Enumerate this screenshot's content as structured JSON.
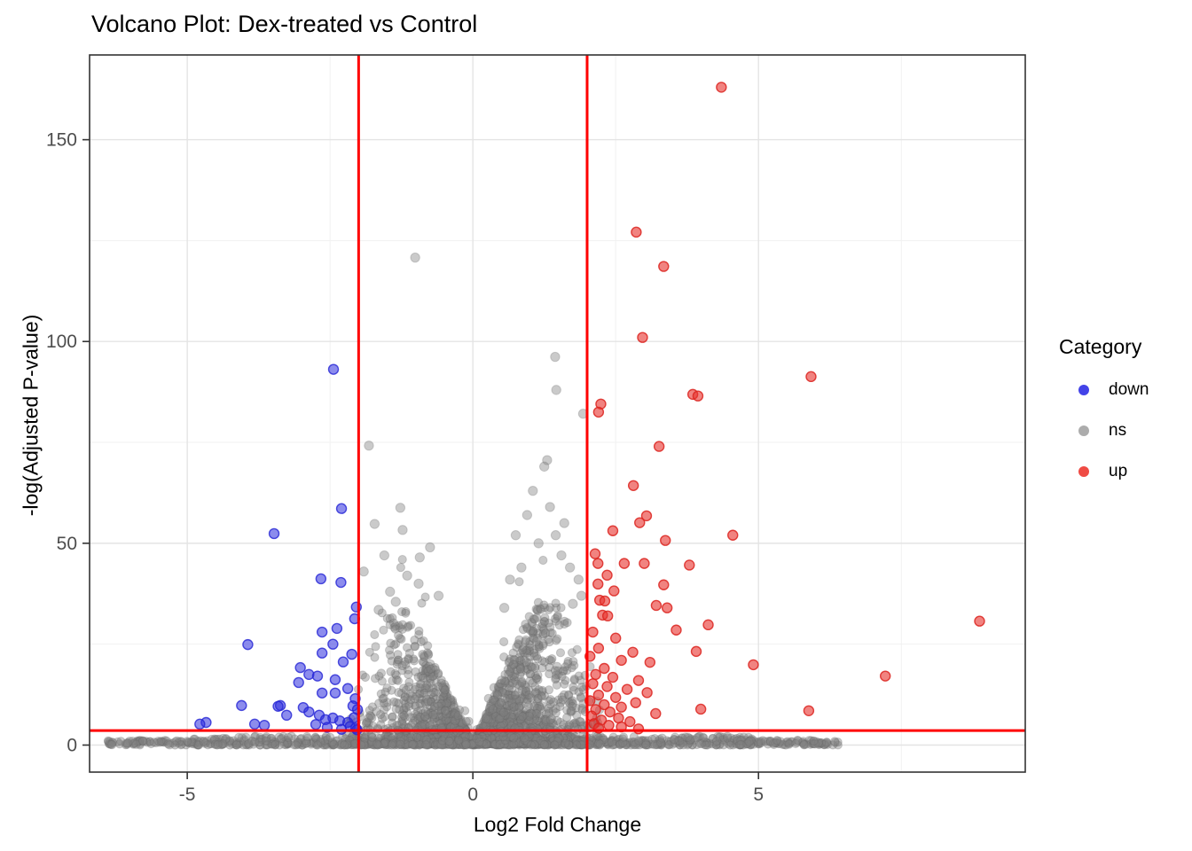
{
  "title": "Volcano Plot: Dex-treated vs Control",
  "legend": {
    "title": "Category",
    "items": [
      {
        "label": "down",
        "color": "#4343E8"
      },
      {
        "label": "ns",
        "color": "#ACACAC"
      },
      {
        "label": "up",
        "color": "#EF4B44"
      }
    ]
  },
  "chart_data": {
    "type": "scatter",
    "title": "Volcano Plot: Dex-treated vs Control",
    "xlabel": "Log2 Fold Change",
    "ylabel": "-log(Adjusted P-value)",
    "xlim": [
      -6.71,
      9.67
    ],
    "ylim": [
      -6.7,
      171
    ],
    "x_ticks": [
      -5,
      0,
      5
    ],
    "x_minor": [
      -2.5,
      2.5,
      7.5
    ],
    "y_ticks": [
      0,
      50,
      100,
      150
    ],
    "y_minor": [
      25,
      75,
      125
    ],
    "grid": true,
    "legend_position": "right",
    "thresholds": {
      "vlines": [
        -2,
        2
      ],
      "hline": 3.6,
      "color": "#FF0000",
      "width": 3
    },
    "style": {
      "panel_border": "#333333",
      "grid_major": "#E4E4E4",
      "grid_minor": "#F1F1F1",
      "tick_color": "#333333",
      "tick_label_color": "#4D4D4D",
      "down_fill": "#2E2EDF",
      "down_stroke": "#2424D4",
      "up_fill": "#E8312C",
      "up_stroke": "#DC2420",
      "ns_fill": "#808080",
      "ns_stroke": "#646464"
    },
    "series": [
      {
        "name": "down",
        "points": [
          [
            -2.44,
            93.1
          ],
          [
            -2.3,
            58.6
          ],
          [
            -3.48,
            52.4
          ],
          [
            -2.66,
            41.2
          ],
          [
            -2.31,
            40.3
          ],
          [
            -2.04,
            34.2
          ],
          [
            -2.07,
            31.3
          ],
          [
            -2.38,
            28.9
          ],
          [
            -2.64,
            28.0
          ],
          [
            -2.45,
            25.0
          ],
          [
            -3.94,
            24.9
          ],
          [
            -2.64,
            22.8
          ],
          [
            -2.12,
            22.5
          ],
          [
            -2.27,
            20.6
          ],
          [
            -3.02,
            19.2
          ],
          [
            -2.87,
            17.5
          ],
          [
            -2.72,
            17.1
          ],
          [
            -2.41,
            16.2
          ],
          [
            -3.05,
            15.5
          ],
          [
            -2.19,
            14.0
          ],
          [
            -2.64,
            12.9
          ],
          [
            -2.41,
            12.9
          ],
          [
            -2.06,
            11.5
          ],
          [
            -4.05,
            9.8
          ],
          [
            -3.37,
            9.8
          ],
          [
            -2.1,
            9.7
          ],
          [
            -3.41,
            9.6
          ],
          [
            -2.97,
            9.3
          ],
          [
            -2.02,
            8.8
          ],
          [
            -2.87,
            8.2
          ],
          [
            -3.26,
            7.4
          ],
          [
            -2.69,
            7.4
          ],
          [
            -2.08,
            6.8
          ],
          [
            -2.45,
            6.7
          ],
          [
            -2.58,
            6.3
          ],
          [
            -2.33,
            6.0
          ],
          [
            -4.67,
            5.6
          ],
          [
            -2.19,
            5.6
          ],
          [
            -3.82,
            5.2
          ],
          [
            -4.78,
            5.2
          ],
          [
            -2.75,
            5.1
          ],
          [
            -3.65,
            4.9
          ],
          [
            -2.15,
            4.6
          ],
          [
            -2.55,
            4.4
          ],
          [
            -2.05,
            4.2
          ],
          [
            -2.3,
            3.9
          ],
          [
            -2.03,
            3.8
          ]
        ]
      },
      {
        "name": "up",
        "points": [
          [
            4.35,
            163.0
          ],
          [
            2.86,
            127.1
          ],
          [
            3.34,
            118.6
          ],
          [
            2.97,
            101.0
          ],
          [
            5.92,
            91.3
          ],
          [
            3.85,
            86.9
          ],
          [
            3.94,
            86.5
          ],
          [
            2.24,
            84.5
          ],
          [
            2.2,
            82.5
          ],
          [
            3.26,
            74.0
          ],
          [
            2.81,
            64.3
          ],
          [
            3.04,
            56.8
          ],
          [
            2.92,
            55.1
          ],
          [
            2.45,
            53.1
          ],
          [
            4.55,
            52.0
          ],
          [
            3.37,
            50.7
          ],
          [
            2.14,
            47.4
          ],
          [
            2.19,
            45.0
          ],
          [
            2.65,
            45.0
          ],
          [
            3.0,
            45.0
          ],
          [
            3.79,
            44.6
          ],
          [
            2.35,
            42.1
          ],
          [
            2.19,
            39.9
          ],
          [
            3.34,
            39.7
          ],
          [
            2.47,
            38.2
          ],
          [
            2.22,
            35.9
          ],
          [
            2.31,
            35.7
          ],
          [
            3.21,
            34.6
          ],
          [
            3.4,
            34.0
          ],
          [
            2.27,
            32.2
          ],
          [
            2.36,
            32.0
          ],
          [
            8.87,
            30.7
          ],
          [
            4.12,
            29.8
          ],
          [
            3.56,
            28.5
          ],
          [
            2.1,
            28.0
          ],
          [
            2.5,
            26.5
          ],
          [
            2.2,
            24.0
          ],
          [
            3.91,
            23.2
          ],
          [
            2.8,
            23.0
          ],
          [
            2.05,
            22.0
          ],
          [
            2.6,
            21.0
          ],
          [
            3.1,
            20.5
          ],
          [
            4.91,
            19.9
          ],
          [
            2.3,
            19.0
          ],
          [
            2.15,
            17.5
          ],
          [
            7.22,
            17.1
          ],
          [
            2.45,
            16.8
          ],
          [
            2.9,
            16.0
          ],
          [
            2.1,
            15.2
          ],
          [
            2.35,
            14.5
          ],
          [
            2.7,
            13.8
          ],
          [
            3.05,
            13.0
          ],
          [
            2.2,
            12.4
          ],
          [
            2.5,
            11.8
          ],
          [
            2.05,
            11.0
          ],
          [
            2.85,
            10.5
          ],
          [
            2.3,
            10.0
          ],
          [
            2.6,
            9.4
          ],
          [
            3.99,
            8.9
          ],
          [
            2.15,
            8.8
          ],
          [
            5.88,
            8.5
          ],
          [
            2.4,
            8.2
          ],
          [
            3.2,
            7.8
          ],
          [
            2.08,
            7.2
          ],
          [
            2.55,
            6.7
          ],
          [
            2.25,
            6.2
          ],
          [
            2.75,
            5.8
          ],
          [
            2.12,
            5.3
          ],
          [
            2.38,
            4.9
          ],
          [
            2.6,
            4.5
          ],
          [
            2.2,
            4.2
          ],
          [
            2.9,
            4.0
          ]
        ]
      },
      {
        "name": "ns",
        "points": [
          [
            -1.01,
            120.8
          ],
          [
            1.44,
            96.2
          ],
          [
            1.46,
            88.0
          ],
          [
            1.93,
            82.1
          ],
          [
            -1.82,
            74.2
          ],
          [
            1.3,
            70.6
          ],
          [
            1.25,
            69.0
          ],
          [
            1.05,
            63.0
          ],
          [
            -1.27,
            58.8
          ],
          [
            1.35,
            59.0
          ],
          [
            0.95,
            57.0
          ],
          [
            1.6,
            55.0
          ],
          [
            -1.72,
            54.8
          ],
          [
            -1.23,
            53.3
          ],
          [
            1.45,
            52.0
          ],
          [
            0.75,
            52.0
          ],
          [
            1.15,
            50.0
          ],
          [
            -0.75,
            49.0
          ],
          [
            -1.55,
            47.0
          ],
          [
            1.55,
            47.0
          ],
          [
            -0.93,
            46.5
          ],
          [
            0.85,
            44.0
          ],
          [
            1.7,
            44.0
          ],
          [
            -1.91,
            43.0
          ],
          [
            -1.15,
            42.0
          ],
          [
            0.65,
            41.0
          ],
          [
            1.85,
            41.0
          ],
          [
            -0.95,
            40.0
          ],
          [
            -1.45,
            38.0
          ],
          [
            1.9,
            37.0
          ],
          [
            -0.6,
            37.0
          ],
          [
            -1.35,
            35.5
          ],
          [
            1.75,
            35.0
          ],
          [
            0.55,
            34.0
          ],
          [
            -1.65,
            33.5
          ]
        ],
        "cloud": {
          "seed": 1234,
          "count": 2400,
          "x_sigma": 0.95,
          "x_skew": 0.12,
          "x_max": 2.25,
          "notch_ramp": 1.1,
          "peak": 33,
          "fade_start": 1.6,
          "fade_span": 0.7,
          "y_pow": 2.4,
          "straggler_chance": 0.03
        },
        "band": {
          "seed": 99,
          "count": 1000,
          "x_core": 4.9,
          "core_pow": 1.3,
          "tail_chance": 0.14,
          "tail_min": 4.8,
          "tail_max": 6.4,
          "y_max": 2.2
        }
      }
    ]
  }
}
